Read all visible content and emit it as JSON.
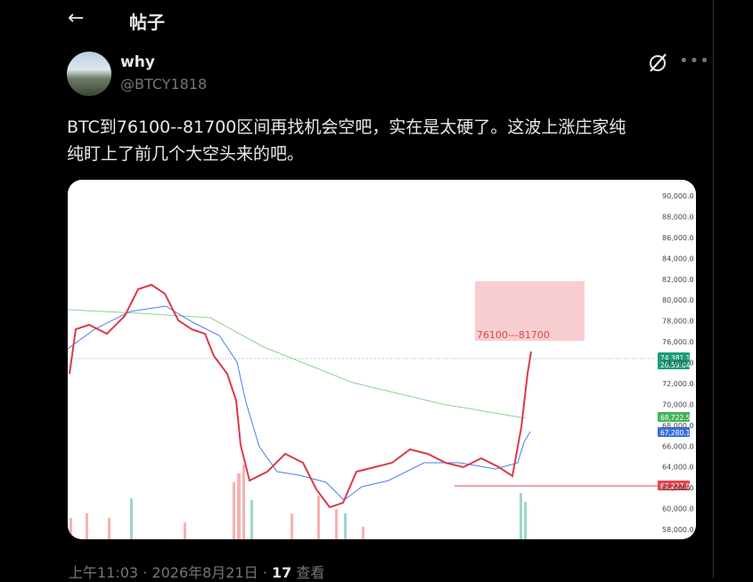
{
  "header": {
    "back": "←",
    "title": "帖子"
  },
  "author": {
    "name": "why",
    "handle": "@BTCY1818"
  },
  "tweet": {
    "lines": [
      "BTC到76100--81700区间再找机会空吧，实在是太硬了。这波上涨庄家纯",
      "纯盯上了前几个大空头来的吧。"
    ]
  },
  "chart": {
    "axis_labels": [
      "90,000.0",
      "88,000.0",
      "86,000.0",
      "84,000.0",
      "82,000.0",
      "80,000.0",
      "78,000.0",
      "76,000.0",
      "74,000.0",
      "72,000.0",
      "70,000.0",
      "68,000.0",
      "66,000.0",
      "64,000.0",
      "62,000.0",
      "60,000.0",
      "58,000.0"
    ],
    "zone_label": "76100---81700",
    "tags": {
      "price": "74,381.1",
      "countdown": "20:59:04",
      "ma_green": "68,722.5",
      "ma_blue": "67,280.1",
      "level": "62,227.0"
    }
  },
  "footer": {
    "time": "上午11:03",
    "separator": "·",
    "date": "2026年8月21日",
    "views": "17",
    "views_label": "查看"
  }
}
